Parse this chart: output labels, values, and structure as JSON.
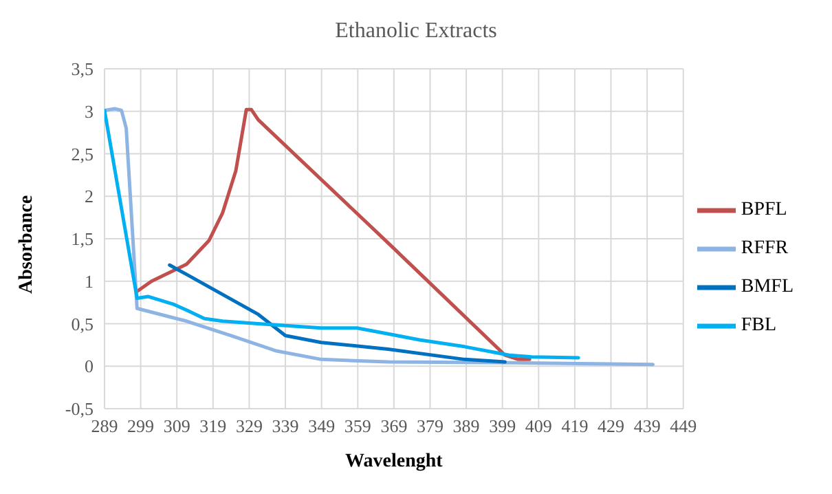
{
  "chart_data": {
    "type": "line",
    "title": "Ethanolic Extracts",
    "xlabel": "Wavelenght",
    "ylabel": "Absorbance",
    "xlim": [
      289,
      449
    ],
    "xticks": [
      289,
      299,
      309,
      319,
      329,
      339,
      349,
      359,
      369,
      379,
      389,
      399,
      409,
      419,
      429,
      439,
      449
    ],
    "ylim": [
      -0.5,
      3.5
    ],
    "yticks": [
      {
        "value": -0.5,
        "label": "-0,5"
      },
      0,
      {
        "value": 0.5,
        "label": "0,5"
      },
      1,
      {
        "value": 1.5,
        "label": "1,5"
      },
      2,
      {
        "value": 2.5,
        "label": "2,5"
      },
      3,
      {
        "value": 3.5,
        "label": "3,5"
      }
    ],
    "grid": true,
    "legend": "right",
    "marker": "none",
    "line_style": "solid",
    "series": [
      {
        "name": "BPFL",
        "color": "#c0504d",
        "x": [
          298,
          302,
          311.7,
          317.9,
          321.6,
          325.3,
          328.2,
          329.6,
          331.5,
          367.4,
          399.7,
          403.4,
          406.5
        ],
        "values": [
          0.88,
          1.0,
          1.2,
          1.48,
          1.8,
          2.3,
          3.02,
          3.02,
          2.9,
          1.45,
          0.13,
          0.08,
          0.08
        ]
      },
      {
        "name": "RFFR",
        "color": "#8eb4e3",
        "x": [
          289,
          291.9,
          293.7,
          295,
          298,
          311.7,
          324,
          336.5,
          348.9,
          367.4,
          402.5,
          440.6
        ],
        "values": [
          3.01,
          3.03,
          3.01,
          2.8,
          0.68,
          0.53,
          0.36,
          0.18,
          0.08,
          0.05,
          0.04,
          0.02
        ]
      },
      {
        "name": "BMFL",
        "color": "#0070c0",
        "x": [
          307,
          311.7,
          331.5,
          339,
          348.9,
          367.4,
          388.5,
          399.7
        ],
        "values": [
          1.19,
          1.08,
          0.61,
          0.36,
          0.28,
          0.2,
          0.08,
          0.05
        ]
      },
      {
        "name": "FBL",
        "color": "#00b0f0",
        "x": [
          289,
          298,
          301,
          308,
          311.7,
          316.6,
          321.6,
          331.5,
          348.9,
          358.8,
          367.4,
          376.1,
          388.5,
          400.9,
          407.1,
          420
        ],
        "values": [
          3.01,
          0.8,
          0.82,
          0.73,
          0.66,
          0.56,
          0.53,
          0.5,
          0.45,
          0.45,
          0.38,
          0.31,
          0.23,
          0.13,
          0.11,
          0.1
        ]
      }
    ]
  }
}
